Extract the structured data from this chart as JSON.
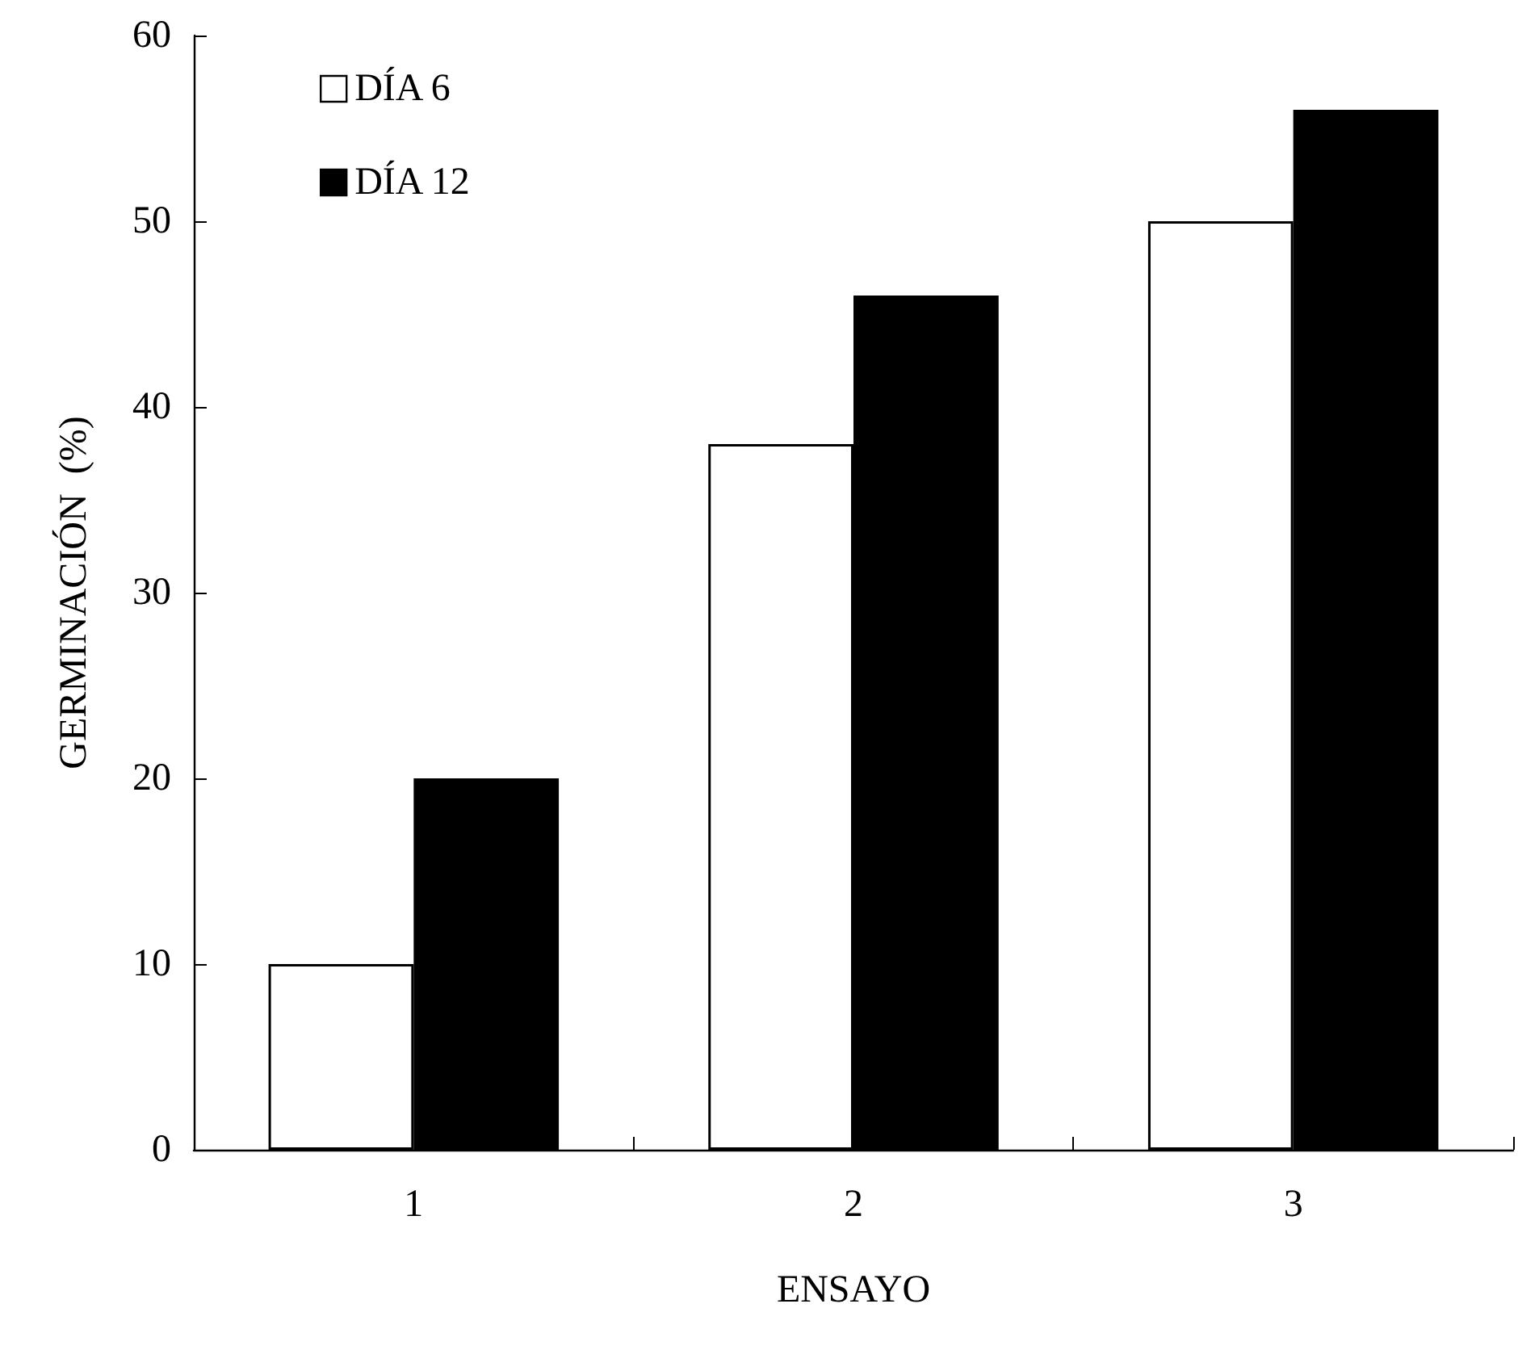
{
  "chart_data": {
    "type": "bar",
    "xlabel": "ENSAYO",
    "ylabel": "GERMINACIÓN  (%)",
    "categories": [
      "1",
      "2",
      "3"
    ],
    "series": [
      {
        "name": "DÍA 6",
        "color": "#ffffff",
        "values": [
          10,
          38,
          50
        ]
      },
      {
        "name": "DÍA 12",
        "color": "#000000",
        "values": [
          20,
          46,
          56
        ]
      }
    ],
    "ylim": [
      0,
      60
    ],
    "yticks": [
      0,
      10,
      20,
      30,
      40,
      50,
      60
    ],
    "grid": false,
    "legend": "top left"
  }
}
